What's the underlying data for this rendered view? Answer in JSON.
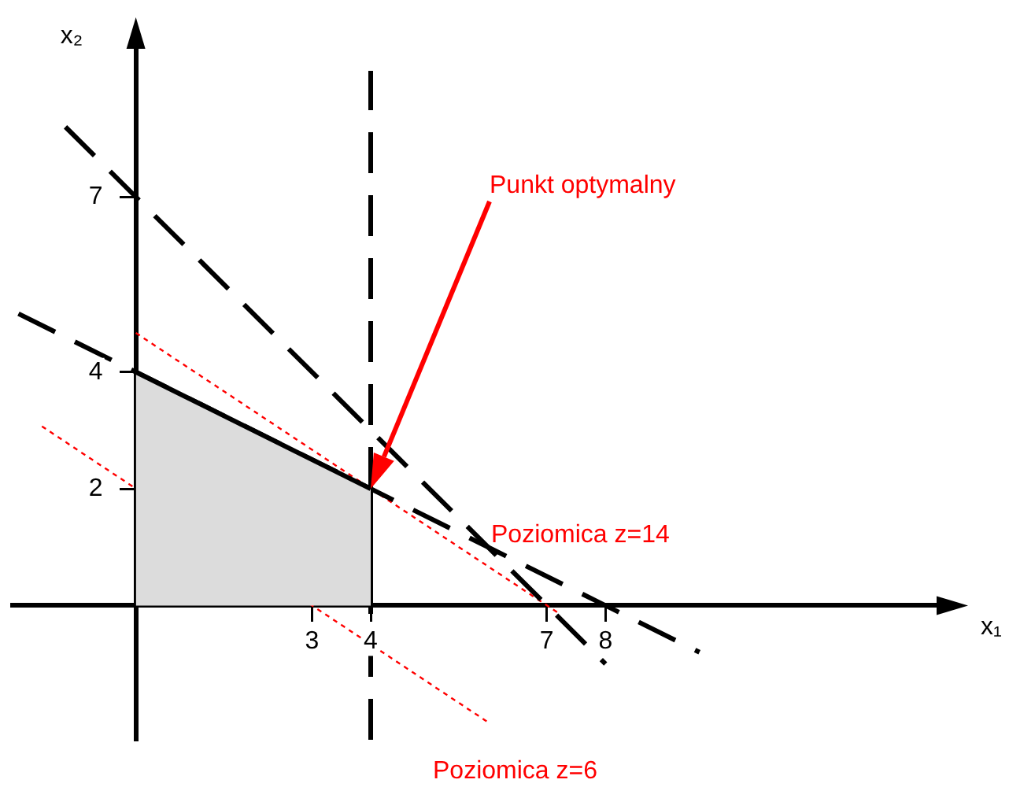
{
  "chart_data": {
    "type": "line",
    "xlabel": "x₁",
    "ylabel": "x₂",
    "xlim": [
      -2.1,
      13.8
    ],
    "ylim": [
      -2.3,
      9.7
    ],
    "xticks": [
      3,
      4,
      7,
      8
    ],
    "yticks": [
      2,
      4,
      7
    ],
    "grid": false,
    "legend": false,
    "marker": "none",
    "series": [
      {
        "type": "area",
        "color": "#dcdcdc",
        "x": [
          0,
          4
        ],
        "values": [
          4,
          2
        ],
        "line_style": "solid"
      },
      {
        "type": "line",
        "color": "#000000",
        "x": [
          4,
          4
        ],
        "values": [
          0,
          2
        ],
        "line_style": "solid"
      },
      {
        "type": "line",
        "color": "#000000",
        "x": [
          -2,
          9.6
        ],
        "values": [
          5,
          -0.8
        ],
        "line_style": "dashed"
      },
      {
        "type": "line",
        "color": "#000000",
        "x": [
          -1.2,
          8
        ],
        "values": [
          8.2,
          -1
        ],
        "line_style": "dashed"
      },
      {
        "type": "line",
        "color": "#ff0000",
        "x": [
          0,
          7.2
        ],
        "values": [
          4.67,
          -0.13
        ],
        "line_style": "dotted"
      },
      {
        "type": "line",
        "color": "#ff0000",
        "x": [
          -1.6,
          6
        ],
        "values": [
          3.07,
          -2
        ],
        "line_style": "dotted"
      }
    ],
    "ref_lines": [
      {
        "axis": "x",
        "value": 4,
        "color": "#000000",
        "line_style": "dashed"
      }
    ],
    "annotations": [
      "Punkt optymalny",
      "Poziomica z=14",
      "Poziomica z=6"
    ]
  }
}
